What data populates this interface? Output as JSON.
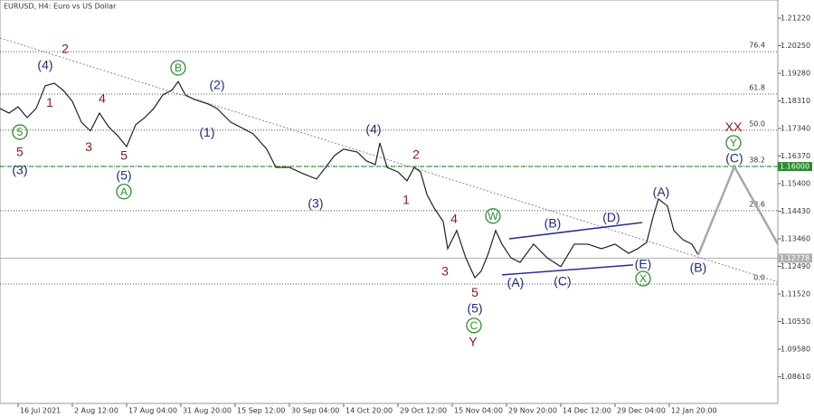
{
  "chart_data": {
    "type": "line",
    "title": "EURUSD, H4:  Euro vs US Dollar",
    "xlim": [
      -0.333,
      14
    ],
    "ylim": [
      1.0767,
      1.21856
    ],
    "yticks": [
      {
        "value": 1.2122,
        "label": "1.21220"
      },
      {
        "value": 1.2025,
        "label": "1.20250"
      },
      {
        "value": 1.1928,
        "label": "1.19280"
      },
      {
        "value": 1.1831,
        "label": "1.18310"
      },
      {
        "value": 1.1734,
        "label": "1.17340"
      },
      {
        "value": 1.1637,
        "label": "1.16370"
      },
      {
        "value": 1.154,
        "label": "1.15400"
      },
      {
        "value": 1.1443,
        "label": "1.14430"
      },
      {
        "value": 1.1346,
        "label": "1.13460"
      },
      {
        "value": 1.1249,
        "label": "1.12490"
      },
      {
        "value": 1.1152,
        "label": "1.11520"
      },
      {
        "value": 1.1055,
        "label": "1.10550"
      },
      {
        "value": 1.0958,
        "label": "1.09580"
      },
      {
        "value": 1.0861,
        "label": "1.08610"
      }
    ],
    "xticks": [
      {
        "value": 0,
        "label": "16 Jul 2021"
      },
      {
        "value": 1,
        "label": "2 Aug 12:00"
      },
      {
        "value": 2,
        "label": "17 Aug 04:00"
      },
      {
        "value": 3,
        "label": "31 Aug 20:00"
      },
      {
        "value": 4,
        "label": "15 Sep 12:00"
      },
      {
        "value": 5,
        "label": "30 Sep 04:00"
      },
      {
        "value": 6,
        "label": "14 Oct 20:00"
      },
      {
        "value": 7,
        "label": "29 Oct 12:00"
      },
      {
        "value": 8,
        "label": "15 Nov 04:00"
      },
      {
        "value": 9,
        "label": "29 Nov 20:00"
      },
      {
        "value": 10,
        "label": "14 Dec 12:00"
      },
      {
        "value": 11,
        "label": "29 Dec 04:00"
      },
      {
        "value": 12,
        "label": "12 Jan 20:00"
      }
    ],
    "series": [
      {
        "color": "#222222",
        "x": [
          -0.333,
          -0.167,
          0,
          0.167,
          0.333,
          0.5,
          0.667,
          0.833,
          1,
          1.167,
          1.333,
          1.5,
          1.667,
          1.833,
          2,
          2.167,
          2.333,
          2.5,
          2.667,
          2.833,
          2.95,
          3.083,
          3.25,
          3.5,
          3.667,
          3.917,
          4.083,
          4.333,
          4.583,
          4.75,
          5,
          5.25,
          5.5,
          5.667,
          5.833,
          6,
          6.25,
          6.417,
          6.583,
          6.667,
          6.8,
          7,
          7.167,
          7.3,
          7.417,
          7.533,
          7.667,
          7.833,
          7.917,
          8.083,
          8.25,
          8.417,
          8.533,
          8.667,
          8.8,
          8.917,
          9.083,
          9.25,
          9.5,
          9.75,
          10,
          10.25,
          10.5,
          10.75,
          11,
          11.25,
          11.417,
          11.583,
          11.7,
          11.8,
          11.967,
          12.083,
          12.25,
          12.417,
          12.533
        ],
        "values": [
          1.1804,
          1.1788,
          1.181,
          1.1772,
          1.1804,
          1.1884,
          1.1893,
          1.1868,
          1.1829,
          1.1756,
          1.1725,
          1.1788,
          1.174,
          1.1709,
          1.167,
          1.1747,
          1.1772,
          1.1804,
          1.1852,
          1.1868,
          1.1899,
          1.1852,
          1.1836,
          1.182,
          1.1804,
          1.1756,
          1.174,
          1.1715,
          1.1661,
          1.1597,
          1.1597,
          1.1575,
          1.1556,
          1.1597,
          1.1639,
          1.1661,
          1.1651,
          1.162,
          1.1607,
          1.1683,
          1.1597,
          1.1581,
          1.155,
          1.1597,
          1.1581,
          1.1502,
          1.1454,
          1.1407,
          1.1311,
          1.1375,
          1.1279,
          1.1209,
          1.1232,
          1.1295,
          1.1375,
          1.1327,
          1.1279,
          1.1263,
          1.1327,
          1.1279,
          1.1248,
          1.1327,
          1.1327,
          1.1311,
          1.1327,
          1.1295,
          1.1311,
          1.1333,
          1.1422,
          1.1486,
          1.1461,
          1.1375,
          1.1343,
          1.1327,
          1.1289
        ]
      },
      {
        "color": "#a8a8a8",
        "x": [
          12.533,
          13.2,
          14
        ],
        "values": [
          1.1289,
          1.16,
          1.1327
        ]
      }
    ],
    "trend_lines": [
      {
        "color": "#888888",
        "dash": true,
        "x": [
          -0.333,
          14
        ],
        "values": [
          1.2052,
          1.1194
        ]
      },
      {
        "color": "#2a2f8f",
        "dash": false,
        "x": [
          9.05,
          11.5
        ],
        "values": [
          1.1346,
          1.1403
        ]
      },
      {
        "color": "#2a2f8f",
        "dash": false,
        "x": [
          8.917,
          11.333
        ],
        "values": [
          1.1219,
          1.1254
        ]
      }
    ],
    "fib_levels": [
      {
        "name": "76.4",
        "value": 1.2004
      },
      {
        "name": "61.8",
        "value": 1.1855
      },
      {
        "name": "50.0",
        "value": 1.1728
      },
      {
        "name": "38.2",
        "value": 1.1601
      },
      {
        "name": "23.6",
        "value": 1.1445
      },
      {
        "name": "0.0",
        "value": 1.1187
      }
    ],
    "price_lines": [
      {
        "value": 1.16,
        "label": "1.16000",
        "color": "#2e8b2e",
        "dash": true
      },
      {
        "value": 1.12778,
        "label": "1.12778",
        "color": "#b0b0b0",
        "dash": false
      }
    ],
    "wave_labels": [
      {
        "text": "(4)",
        "x": 0.5,
        "y": 1.1957,
        "color": "#1f2a7a"
      },
      {
        "text": "2",
        "x": 0.867,
        "y": 1.2014,
        "color": "#8b1a1a"
      },
      {
        "text": "1",
        "x": 0.583,
        "y": 1.1826,
        "color": "#8b1a1a"
      },
      {
        "text": "4",
        "x": 1.55,
        "y": 1.1839,
        "color": "#8b1a1a"
      },
      {
        "text": "3",
        "x": 1.3,
        "y": 1.167,
        "color": "#8b1a1a"
      },
      {
        "text": "5",
        "x": 1.95,
        "y": 1.1639,
        "color": "#8b1a1a"
      },
      {
        "text": "(5)",
        "x": 1.95,
        "y": 1.1569,
        "color": "#1f2a7a"
      },
      {
        "text": "A",
        "x": 1.95,
        "y": 1.1512,
        "color": "#2e8b2e",
        "circled": true
      },
      {
        "text": "5",
        "x": 0.033,
        "y": 1.1721,
        "color": "#2e8b2e",
        "circled": true
      },
      {
        "text": "5",
        "x": 0.033,
        "y": 1.1652,
        "color": "#8b1a1a"
      },
      {
        "text": "(3)",
        "x": 0.033,
        "y": 1.1588,
        "color": "#1f2a7a"
      },
      {
        "text": "B",
        "x": 2.95,
        "y": 1.1947,
        "color": "#2e8b2e",
        "circled": true
      },
      {
        "text": "(2)",
        "x": 3.667,
        "y": 1.1887,
        "color": "#1f2a7a"
      },
      {
        "text": "(1)",
        "x": 3.483,
        "y": 1.1721,
        "color": "#1f2a7a"
      },
      {
        "text": "(3)",
        "x": 5.483,
        "y": 1.147,
        "color": "#1f2a7a"
      },
      {
        "text": "(4)",
        "x": 6.55,
        "y": 1.1731,
        "color": "#1f2a7a"
      },
      {
        "text": "2",
        "x": 7.333,
        "y": 1.1642,
        "color": "#8b1a1a"
      },
      {
        "text": "1",
        "x": 7.15,
        "y": 1.1483,
        "color": "#8b1a1a"
      },
      {
        "text": "4",
        "x": 8.033,
        "y": 1.1416,
        "color": "#8b1a1a"
      },
      {
        "text": "3",
        "x": 7.867,
        "y": 1.1232,
        "color": "#8b1a1a"
      },
      {
        "text": "5",
        "x": 8.417,
        "y": 1.1158,
        "color": "#8b1a1a"
      },
      {
        "text": "(5)",
        "x": 8.417,
        "y": 1.1101,
        "color": "#1f2a7a"
      },
      {
        "text": "C",
        "x": 8.4,
        "y": 1.1041,
        "color": "#2e8b2e",
        "circled": true
      },
      {
        "text": "Y",
        "x": 8.383,
        "y": 1.0984,
        "color": "#8b1a1a"
      },
      {
        "text": "W",
        "x": 8.75,
        "y": 1.1426,
        "color": "#2e8b2e",
        "circled": true
      },
      {
        "text": "(B)",
        "x": 9.85,
        "y": 1.14,
        "color": "#1f2a7a"
      },
      {
        "text": "(D)",
        "x": 10.933,
        "y": 1.1422,
        "color": "#1f2a7a"
      },
      {
        "text": "(A)",
        "x": 9.167,
        "y": 1.1193,
        "color": "#1f2a7a"
      },
      {
        "text": "(C)",
        "x": 10.033,
        "y": 1.1197,
        "color": "#1f2a7a"
      },
      {
        "text": "(E)",
        "x": 11.517,
        "y": 1.1257,
        "color": "#1f2a7a"
      },
      {
        "text": "X",
        "x": 11.517,
        "y": 1.1206,
        "color": "#2e8b2e",
        "circled": true
      },
      {
        "text": "(A)",
        "x": 11.85,
        "y": 1.1511,
        "color": "#1f2a7a"
      },
      {
        "text": "(B)",
        "x": 12.533,
        "y": 1.1244,
        "color": "#1f2a7a"
      },
      {
        "text": "XX",
        "x": 13.183,
        "y": 1.174,
        "color": "#8b1a1a"
      },
      {
        "text": "Y",
        "x": 13.183,
        "y": 1.1683,
        "color": "#2e8b2e",
        "circled": true
      },
      {
        "text": "(C)",
        "x": 13.2,
        "y": 1.1629,
        "color": "#1f2a7a"
      }
    ]
  }
}
